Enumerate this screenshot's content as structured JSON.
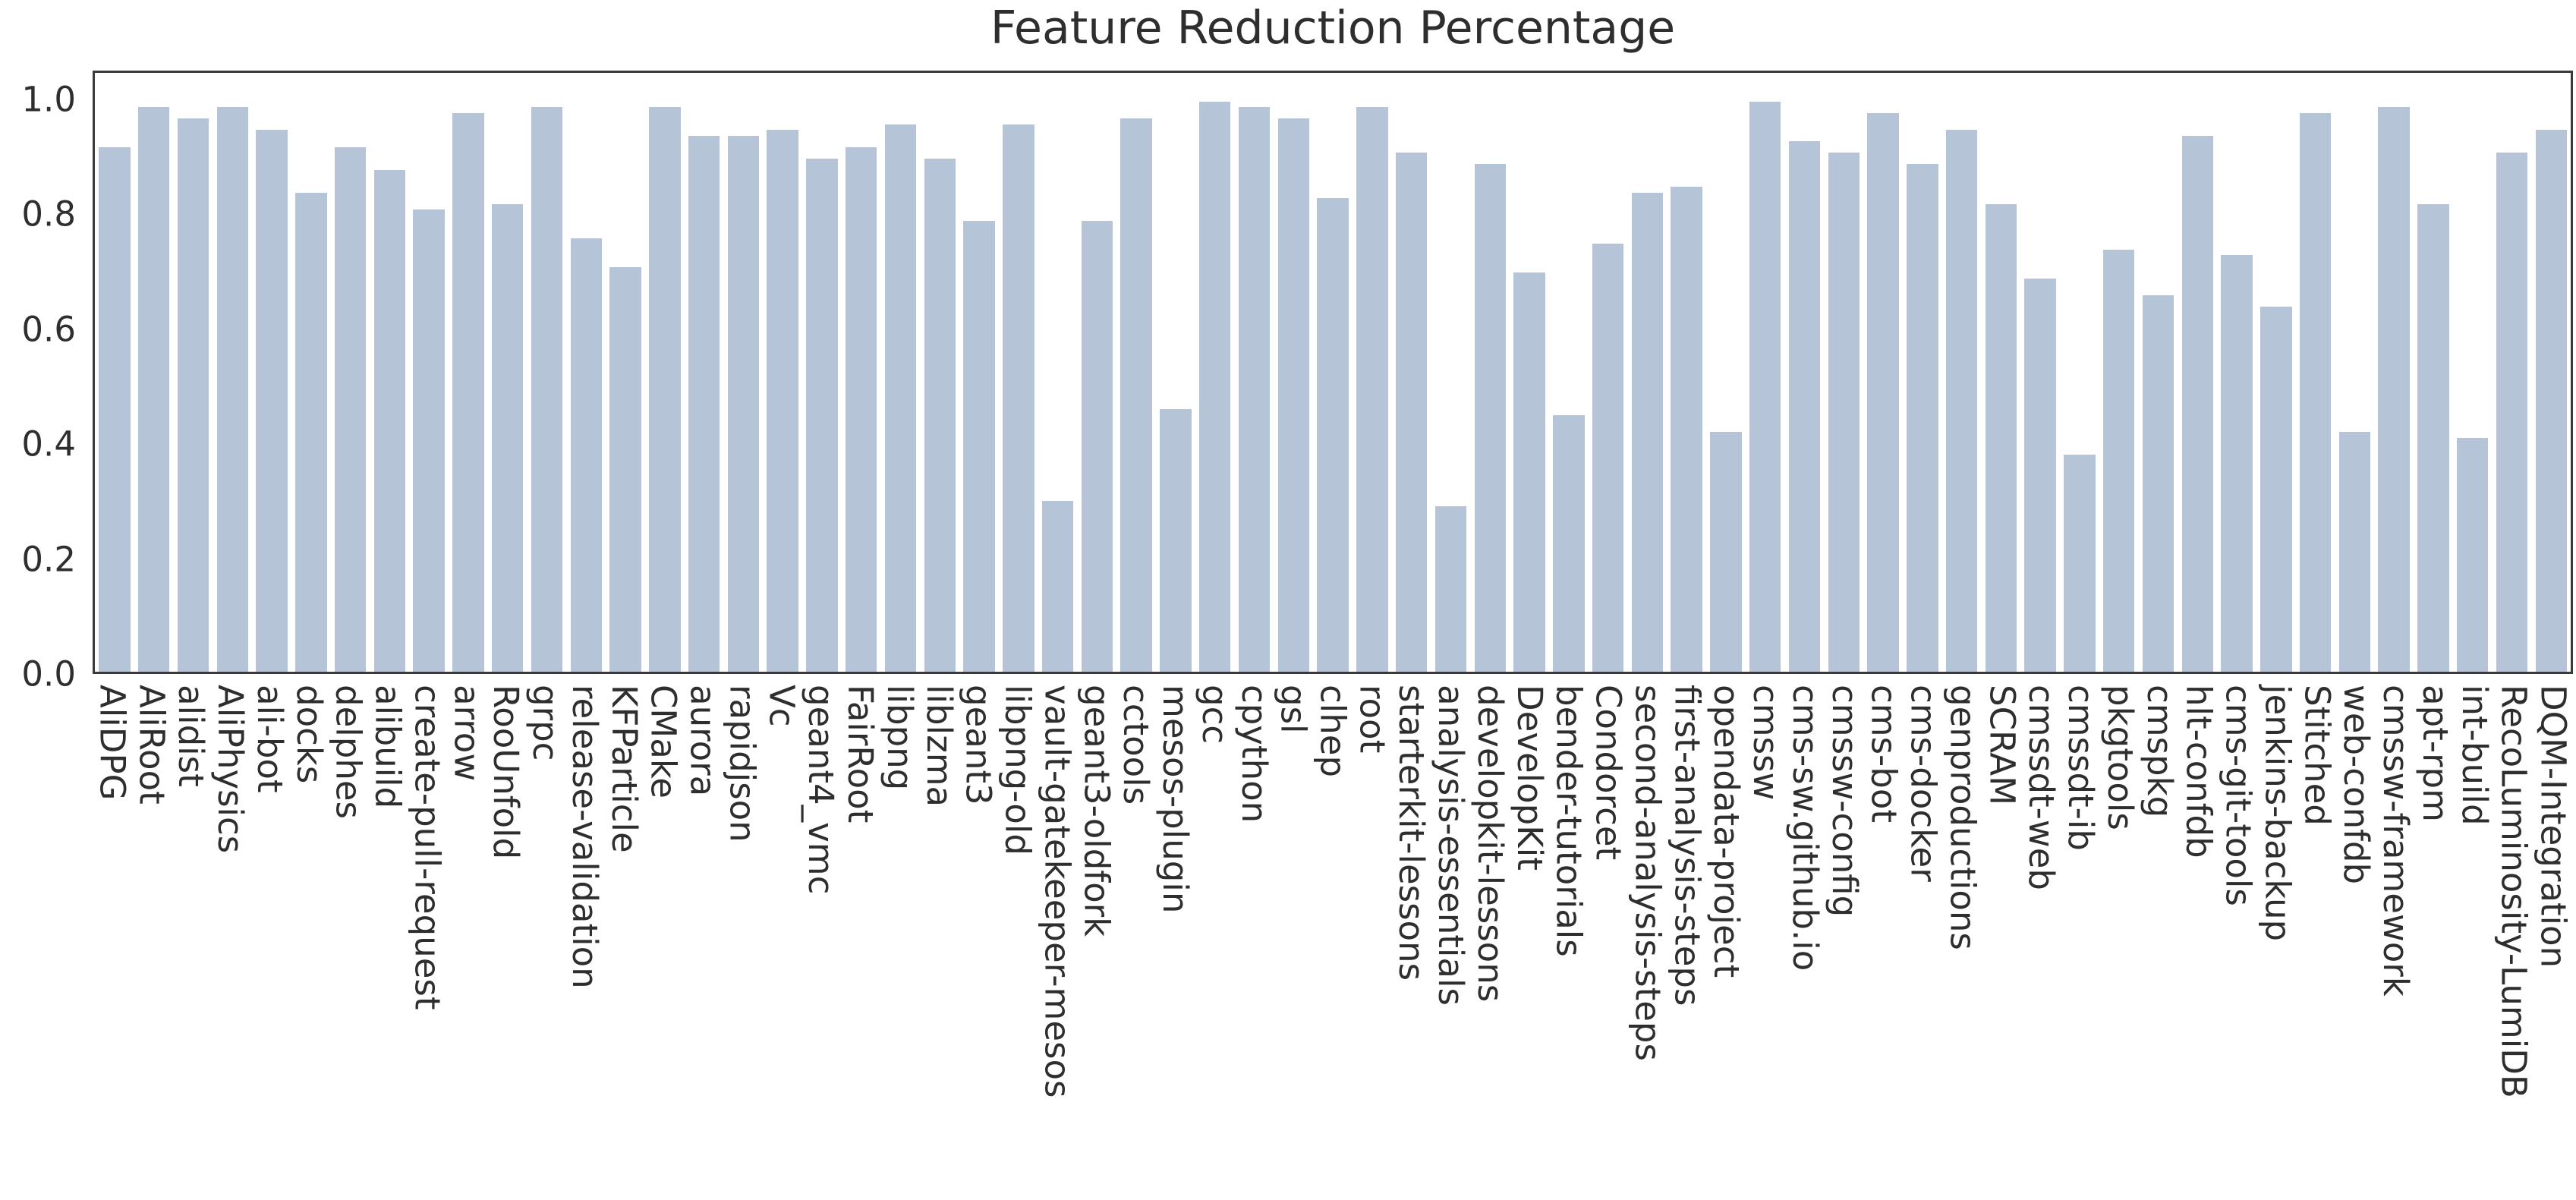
{
  "title": "Feature Reduction Percentage",
  "colors": {
    "bar": "#b5c4d6",
    "axis_frame": "#3a3a3a",
    "text": "#2e2e2e",
    "background": "#ffffff"
  },
  "chart_data": {
    "type": "bar",
    "title": "Feature Reduction Percentage",
    "xlabel": "",
    "ylabel": "",
    "ylim": [
      0,
      1.05
    ],
    "grid": false,
    "legend": "none",
    "x_tick_rotation": 90,
    "bar_color": "#b5c4d6",
    "yticks": [
      "0.0",
      "0.2",
      "0.4",
      "0.6",
      "0.8",
      "1.0"
    ],
    "categories": [
      "AliDPG",
      "AliRoot",
      "alidist",
      "AliPhysics",
      "ali-bot",
      "docks",
      "delphes",
      "alibuild",
      "create-pull-request",
      "arrow",
      "RooUnfold",
      "grpc",
      "release-validation",
      "KFParticle",
      "CMake",
      "aurora",
      "rapidjson",
      "Vc",
      "geant4_vmc",
      "FairRoot",
      "libpng",
      "liblzma",
      "geant3",
      "libpng-old",
      "vault-gatekeeper-mesos",
      "geant3-oldfork",
      "cctools",
      "mesos-plugin",
      "gcc",
      "cpython",
      "gsl",
      "clhep",
      "root",
      "starterkit-lessons",
      "analysis-essentials",
      "developkit-lessons",
      "DevelopKit",
      "bender-tutorials",
      "Condorcet",
      "second-analysis-steps",
      "first-analysis-steps",
      "opendata-project",
      "cmssw",
      "cms-sw.github.io",
      "cmssw-config",
      "cms-bot",
      "cms-docker",
      "genproductions",
      "SCRAM",
      "cmssdt-web",
      "cmssdt-ib",
      "pkgtools",
      "cmspkg",
      "hlt-confdb",
      "cms-git-tools",
      "jenkins-backup",
      "Stitched",
      "web-confdb",
      "cmssw-framework",
      "apt-rpm",
      "int-build",
      "RecoLuminosity-LumiDB",
      "DQM-Integration"
    ],
    "values": [
      0.92,
      0.99,
      0.97,
      0.99,
      0.95,
      0.84,
      0.92,
      0.88,
      0.81,
      0.98,
      0.82,
      0.99,
      0.76,
      0.71,
      0.99,
      0.94,
      0.94,
      0.95,
      0.9,
      0.92,
      0.96,
      0.9,
      0.79,
      0.96,
      0.3,
      0.79,
      0.97,
      0.46,
      1.0,
      0.99,
      0.97,
      0.83,
      0.99,
      0.91,
      0.29,
      0.89,
      0.7,
      0.45,
      0.75,
      0.84,
      0.85,
      0.42,
      1.0,
      0.93,
      0.91,
      0.98,
      0.89,
      0.95,
      0.82,
      0.69,
      0.38,
      0.74,
      0.66,
      0.94,
      0.73,
      0.64,
      0.98,
      0.42,
      0.99,
      0.82,
      0.41,
      0.91,
      0.95
    ]
  }
}
